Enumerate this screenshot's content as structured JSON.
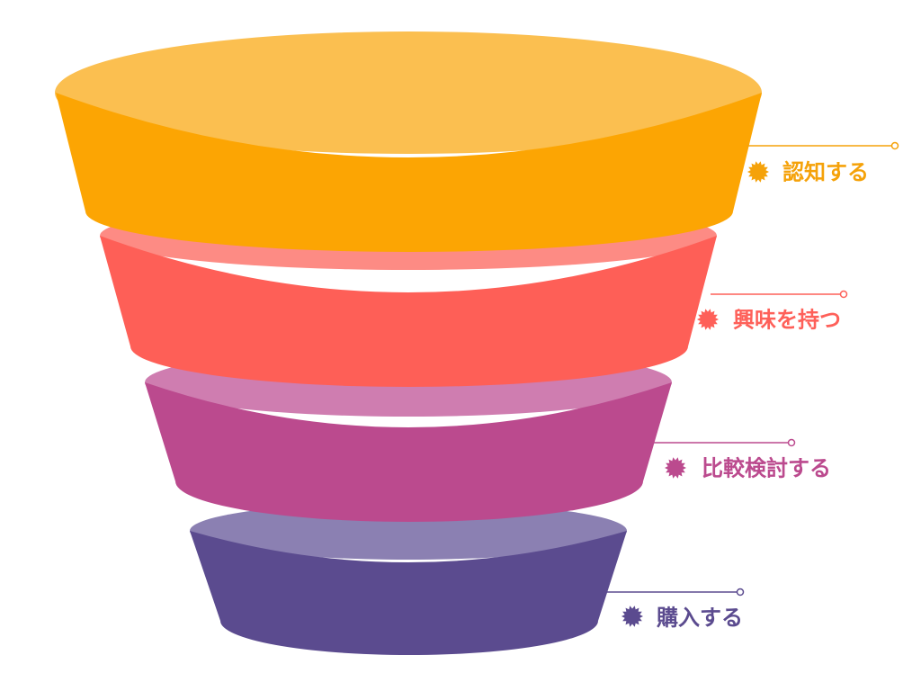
{
  "stages": [
    {
      "label": "認知する"
    },
    {
      "label": "興味を持つ"
    },
    {
      "label": "比較検討する"
    },
    {
      "label": "購入する"
    }
  ]
}
